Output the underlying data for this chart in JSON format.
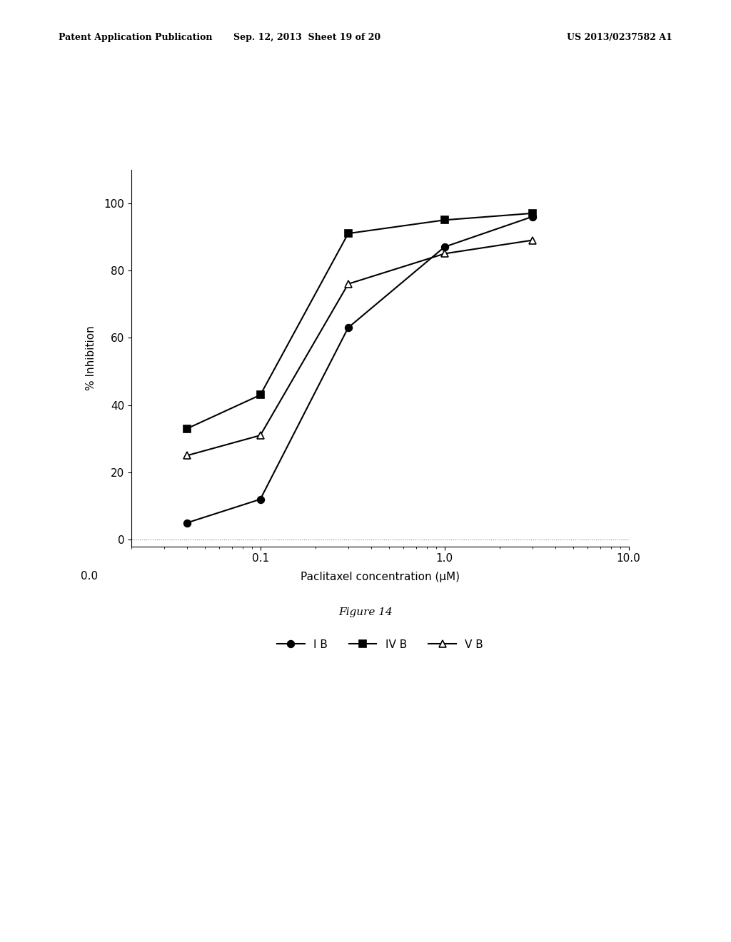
{
  "series": [
    {
      "label": "I B",
      "x": [
        0.04,
        0.1,
        0.3,
        1.0,
        3.0
      ],
      "y": [
        5,
        12,
        63,
        87,
        96
      ],
      "marker": "o",
      "marker_fill": "black",
      "marker_size": 7,
      "linestyle": "-",
      "color": "black",
      "fillstyle": "full"
    },
    {
      "label": "IV B",
      "x": [
        0.04,
        0.1,
        0.3,
        1.0,
        3.0
      ],
      "y": [
        33,
        43,
        91,
        95,
        97
      ],
      "marker": "s",
      "marker_fill": "black",
      "marker_size": 7,
      "linestyle": "-",
      "color": "black",
      "fillstyle": "full"
    },
    {
      "label": "V B",
      "x": [
        0.04,
        0.1,
        0.3,
        1.0,
        3.0
      ],
      "y": [
        25,
        31,
        76,
        85,
        89
      ],
      "marker": "^",
      "marker_fill": "white",
      "marker_size": 7,
      "linestyle": "-",
      "color": "black",
      "fillstyle": "none"
    }
  ],
  "xlabel": "Paclitaxel concentration (μM)",
  "ylabel": "% Inhibition",
  "xlim": [
    0.02,
    10.0
  ],
  "ylim": [
    -2,
    110
  ],
  "yticks": [
    0,
    20,
    40,
    60,
    80,
    100
  ],
  "xtick_labels": [
    "0.0",
    "0.1",
    "1.0",
    "10.0"
  ],
  "xtick_positions": [
    0.03,
    0.1,
    1.0,
    10.0
  ],
  "figure_caption": "Figure 14",
  "header_left": "Patent Application Publication",
  "header_mid": "Sep. 12, 2013  Sheet 19 of 20",
  "header_right": "US 2013/0237582 A1",
  "background_color": "#ffffff",
  "plot_bgcolor": "#ffffff"
}
